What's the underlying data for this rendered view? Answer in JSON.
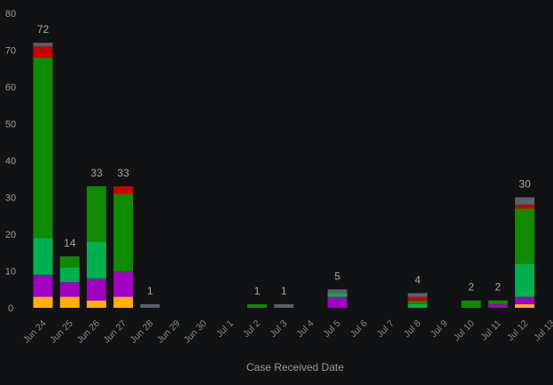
{
  "chart_data": {
    "type": "bar",
    "stacked": true,
    "xlabel": "Case Received Date",
    "ylabel": "",
    "ylim": [
      0,
      80
    ],
    "yticks": [
      0,
      10,
      20,
      30,
      40,
      50,
      60,
      70,
      80
    ],
    "grid": false,
    "legend": "none",
    "categories": [
      "Jun 24",
      "Jun 25",
      "Jun 26",
      "Jun 27",
      "Jun 28",
      "Jun 29",
      "Jun 30",
      "Jul 1",
      "Jul 2",
      "Jul 3",
      "Jul 4",
      "Jul 5",
      "Jul 6",
      "Jul 7",
      "Jul 8",
      "Jul 9",
      "Jul 10",
      "Jul 11",
      "Jul 12",
      "Jul 13"
    ],
    "series": [
      {
        "color": "#ffb000",
        "values": [
          3,
          3,
          2,
          3,
          0,
          0,
          0,
          0,
          0,
          0,
          0,
          0,
          0,
          0,
          0,
          0,
          0,
          0,
          1,
          0
        ]
      },
      {
        "color": "#a000c0",
        "values": [
          6,
          4,
          6,
          7,
          0,
          0,
          0,
          0,
          0,
          0,
          0,
          3,
          0,
          0,
          0,
          0,
          0,
          1,
          2,
          0
        ]
      },
      {
        "color": "#00b050",
        "values": [
          10,
          4,
          10,
          0,
          0,
          0,
          0,
          0,
          0,
          0,
          0,
          1,
          0,
          0,
          1,
          0,
          0,
          0,
          9,
          0
        ]
      },
      {
        "color": "#108a00",
        "values": [
          49,
          3,
          15,
          21,
          0,
          0,
          0,
          0,
          1,
          0,
          0,
          0,
          0,
          0,
          1,
          0,
          2,
          1,
          15,
          0
        ]
      },
      {
        "color": "#cc0000",
        "values": [
          3,
          0,
          0,
          2,
          0,
          0,
          0,
          0,
          0,
          0,
          0,
          0,
          0,
          0,
          1,
          0,
          0,
          0,
          1,
          0
        ]
      },
      {
        "color": "#5e6068",
        "values": [
          1,
          0,
          0,
          0,
          1,
          0,
          0,
          0,
          0,
          1,
          0,
          1,
          0,
          0,
          1,
          0,
          0,
          0,
          2,
          0
        ]
      }
    ],
    "totals": [
      72,
      14,
      33,
      33,
      1,
      null,
      null,
      null,
      1,
      1,
      null,
      5,
      null,
      null,
      4,
      null,
      2,
      2,
      30,
      null
    ]
  }
}
